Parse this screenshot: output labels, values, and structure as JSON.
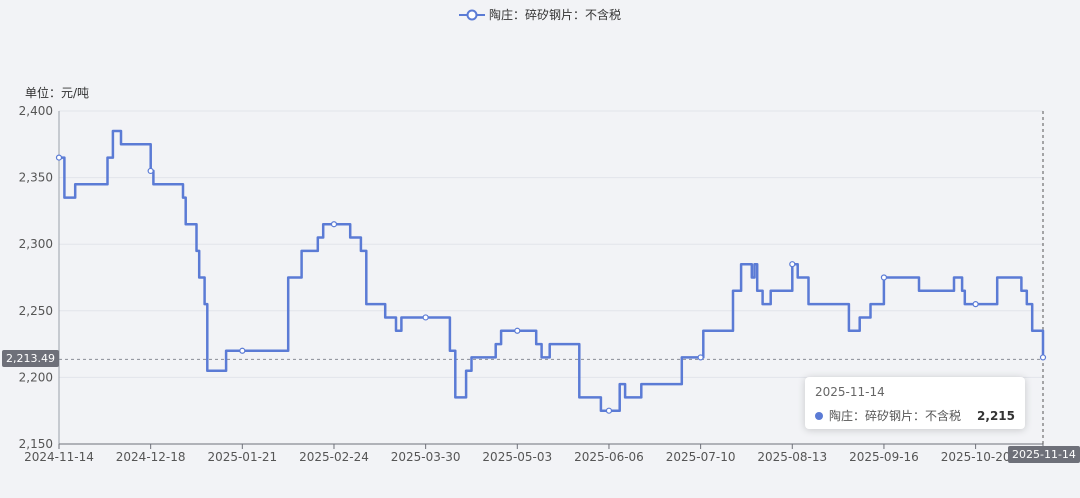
{
  "legend": {
    "label": "陶庄：碎矽钢片：不含税",
    "color": "#5b7bd5"
  },
  "unit_label": "单位：元/吨",
  "crosshair": {
    "y_value_label": "2,213.49",
    "y_value": 2213.49,
    "x_label": "2025-11-14"
  },
  "tooltip": {
    "date": "2025-11-14",
    "series": "陶庄：碎矽钢片：不含税",
    "value": "2,215"
  },
  "chart_data": {
    "type": "line",
    "step": true,
    "ylim": [
      2150,
      2400
    ],
    "yticks": [
      2150,
      2200,
      2250,
      2300,
      2350,
      2400
    ],
    "ytick_labels": [
      "2,150",
      "2,200",
      "2,250",
      "2,300",
      "2,350",
      "2,400"
    ],
    "x_range": [
      "2024-11-14",
      "2025-11-14"
    ],
    "xtick_labels": [
      "2024-11-14",
      "2024-12-18",
      "2025-01-21",
      "2025-02-24",
      "2025-03-30",
      "2025-05-03",
      "2025-06-06",
      "2025-07-10",
      "2025-08-13",
      "2025-09-16",
      "2025-10-20"
    ],
    "series": [
      {
        "name": "陶庄：碎矽钢片：不含税",
        "points": [
          [
            "2024-11-14",
            2365
          ],
          [
            "2024-11-15",
            2365
          ],
          [
            "2024-11-16",
            2335
          ],
          [
            "2024-11-20",
            2345
          ],
          [
            "2024-12-01",
            2345
          ],
          [
            "2024-12-02",
            2365
          ],
          [
            "2024-12-04",
            2385
          ],
          [
            "2024-12-07",
            2375
          ],
          [
            "2024-12-18",
            2355
          ],
          [
            "2024-12-19",
            2345
          ],
          [
            "2024-12-30",
            2335
          ],
          [
            "2024-12-31",
            2315
          ],
          [
            "2025-01-04",
            2295
          ],
          [
            "2025-01-05",
            2275
          ],
          [
            "2025-01-07",
            2255
          ],
          [
            "2025-01-08",
            2205
          ],
          [
            "2025-01-15",
            2220
          ],
          [
            "2025-01-21",
            2220
          ],
          [
            "2025-02-05",
            2220
          ],
          [
            "2025-02-07",
            2275
          ],
          [
            "2025-02-12",
            2295
          ],
          [
            "2025-02-18",
            2305
          ],
          [
            "2025-02-20",
            2315
          ],
          [
            "2025-02-24",
            2315
          ],
          [
            "2025-03-02",
            2305
          ],
          [
            "2025-03-06",
            2295
          ],
          [
            "2025-03-08",
            2255
          ],
          [
            "2025-03-15",
            2245
          ],
          [
            "2025-03-19",
            2235
          ],
          [
            "2025-03-21",
            2245
          ],
          [
            "2025-03-30",
            2245
          ],
          [
            "2025-04-07",
            2245
          ],
          [
            "2025-04-08",
            2220
          ],
          [
            "2025-04-10",
            2185
          ],
          [
            "2025-04-14",
            2205
          ],
          [
            "2025-04-16",
            2215
          ],
          [
            "2025-04-25",
            2225
          ],
          [
            "2025-04-27",
            2235
          ],
          [
            "2025-05-03",
            2235
          ],
          [
            "2025-05-09",
            2235
          ],
          [
            "2025-05-10",
            2225
          ],
          [
            "2025-05-12",
            2215
          ],
          [
            "2025-05-15",
            2225
          ],
          [
            "2025-05-25",
            2225
          ],
          [
            "2025-05-26",
            2185
          ],
          [
            "2025-06-02",
            2185
          ],
          [
            "2025-06-03",
            2175
          ],
          [
            "2025-06-06",
            2175
          ],
          [
            "2025-06-09",
            2175
          ],
          [
            "2025-06-10",
            2195
          ],
          [
            "2025-06-12",
            2185
          ],
          [
            "2025-06-18",
            2195
          ],
          [
            "2025-07-02",
            2195
          ],
          [
            "2025-07-03",
            2215
          ],
          [
            "2025-07-10",
            2215
          ],
          [
            "2025-07-11",
            2235
          ],
          [
            "2025-07-21",
            2235
          ],
          [
            "2025-07-22",
            2265
          ],
          [
            "2025-07-25",
            2285
          ],
          [
            "2025-07-28",
            2285
          ],
          [
            "2025-07-29",
            2275
          ],
          [
            "2025-07-30",
            2285
          ],
          [
            "2025-07-31",
            2265
          ],
          [
            "2025-08-02",
            2255
          ],
          [
            "2025-08-05",
            2265
          ],
          [
            "2025-08-12",
            2265
          ],
          [
            "2025-08-13",
            2285
          ],
          [
            "2025-08-15",
            2275
          ],
          [
            "2025-08-19",
            2255
          ],
          [
            "2025-09-02",
            2255
          ],
          [
            "2025-09-03",
            2235
          ],
          [
            "2025-09-07",
            2245
          ],
          [
            "2025-09-11",
            2255
          ],
          [
            "2025-09-15",
            2255
          ],
          [
            "2025-09-16",
            2275
          ],
          [
            "2025-09-28",
            2275
          ],
          [
            "2025-09-29",
            2265
          ],
          [
            "2025-10-11",
            2265
          ],
          [
            "2025-10-12",
            2275
          ],
          [
            "2025-10-15",
            2265
          ],
          [
            "2025-10-16",
            2255
          ],
          [
            "2025-10-20",
            2255
          ],
          [
            "2025-10-27",
            2255
          ],
          [
            "2025-10-28",
            2275
          ],
          [
            "2025-11-05",
            2275
          ],
          [
            "2025-11-06",
            2265
          ],
          [
            "2025-11-08",
            2255
          ],
          [
            "2025-11-10",
            2235
          ],
          [
            "2025-11-13",
            2235
          ],
          [
            "2025-11-14",
            2215
          ]
        ],
        "markers": [
          [
            "2024-11-14",
            2365
          ],
          [
            "2024-12-18",
            2355
          ],
          [
            "2025-01-21",
            2220
          ],
          [
            "2025-02-24",
            2315
          ],
          [
            "2025-03-30",
            2245
          ],
          [
            "2025-05-03",
            2235
          ],
          [
            "2025-06-06",
            2175
          ],
          [
            "2025-07-10",
            2215
          ],
          [
            "2025-08-13",
            2285
          ],
          [
            "2025-09-16",
            2275
          ],
          [
            "2025-10-20",
            2255
          ],
          [
            "2025-11-14",
            2215
          ]
        ]
      }
    ]
  }
}
